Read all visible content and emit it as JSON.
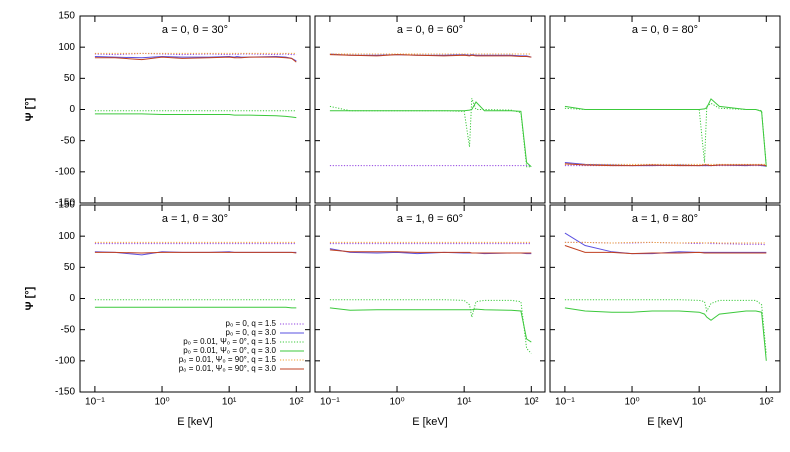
{
  "chart_data": [
    {
      "type": "line",
      "title": "a = 0, θ = 30°",
      "x": [
        0.1,
        0.2,
        0.5,
        1,
        2,
        5,
        10,
        12,
        13,
        15,
        20,
        50,
        70,
        85,
        100
      ],
      "xlim": [
        0.06,
        160
      ],
      "ylim": [
        -150,
        150
      ],
      "xscale": "log",
      "xticks": [
        0.1,
        1,
        10,
        100
      ],
      "yticks": [
        -150,
        -100,
        -50,
        0,
        50,
        100,
        150
      ],
      "series": [
        {
          "color": "#9040e0",
          "dash": true,
          "values": [
            89,
            88,
            90,
            89,
            88,
            89,
            88,
            89,
            88,
            89,
            89,
            88,
            89,
            88,
            88
          ]
        },
        {
          "color": "#5a50e0",
          "dash": false,
          "values": [
            85,
            84,
            83,
            85,
            84,
            84,
            85,
            84,
            85,
            84,
            84,
            85,
            84,
            82,
            78
          ]
        },
        {
          "color": "#3cc93c",
          "dash": true,
          "values": [
            -2,
            -2,
            -2,
            -2,
            -2,
            -2,
            -2,
            -2,
            -2,
            -2,
            -2,
            -2,
            -2,
            -2,
            -2
          ]
        },
        {
          "color": "#3cc93c",
          "dash": false,
          "values": [
            -7,
            -7,
            -7,
            -8,
            -8,
            -8,
            -8,
            -9,
            -9,
            -9,
            -9,
            -10,
            -11,
            -12,
            -13
          ]
        },
        {
          "color": "#f0a030",
          "dash": true,
          "values": [
            90,
            90,
            90,
            90,
            90,
            90,
            90,
            90,
            90,
            90,
            90,
            90,
            90,
            90,
            90
          ]
        },
        {
          "color": "#c04020",
          "dash": false,
          "values": [
            83,
            83,
            80,
            84,
            82,
            83,
            84,
            83,
            83,
            83,
            84,
            84,
            83,
            82,
            76
          ]
        }
      ],
      "ylabel": "Ψ [°]"
    },
    {
      "type": "line",
      "title": "a = 0, θ = 60°",
      "x": [
        0.1,
        0.2,
        0.5,
        1,
        2,
        5,
        10,
        12,
        13,
        15,
        20,
        50,
        70,
        85,
        100
      ],
      "xlim": [
        0.06,
        160
      ],
      "ylim": [
        -150,
        150
      ],
      "xscale": "log",
      "xticks": [
        0.1,
        1,
        10,
        100
      ],
      "yticks": [
        -150,
        -100,
        -50,
        0,
        50,
        100,
        150
      ],
      "series": [
        {
          "color": "#9040e0",
          "dash": true,
          "values": [
            -90,
            -90,
            -90,
            -90,
            -90,
            -90,
            -90,
            -90,
            -90,
            -90,
            -90,
            -90,
            -90,
            -90,
            -90
          ]
        },
        {
          "color": "#5a50e0",
          "dash": false,
          "values": [
            89,
            87,
            87,
            88,
            87,
            87,
            88,
            87,
            88,
            87,
            87,
            87,
            86,
            86,
            84
          ]
        },
        {
          "color": "#3cc93c",
          "dash": true,
          "values": [
            5,
            -2,
            -2,
            -2,
            -2,
            -2,
            -3,
            -60,
            18,
            0,
            0,
            -1,
            -5,
            -92,
            -92
          ]
        },
        {
          "color": "#3cc93c",
          "dash": false,
          "values": [
            -2,
            -2,
            -2,
            -2,
            -2,
            -2,
            -2,
            -1,
            0,
            12,
            -2,
            -2,
            -3,
            -85,
            -92
          ]
        },
        {
          "color": "#f0a030",
          "dash": true,
          "values": [
            89,
            89,
            89,
            89,
            89,
            89,
            89,
            89,
            89,
            89,
            89,
            89,
            89,
            89,
            89
          ]
        },
        {
          "color": "#c04020",
          "dash": false,
          "values": [
            88,
            87,
            86,
            88,
            87,
            86,
            87,
            86,
            87,
            86,
            86,
            86,
            85,
            85,
            84
          ]
        }
      ]
    },
    {
      "type": "line",
      "title": "a = 0, θ = 80°",
      "x": [
        0.1,
        0.2,
        0.5,
        1,
        2,
        5,
        10,
        12,
        13,
        15,
        20,
        50,
        70,
        85,
        100
      ],
      "xlim": [
        0.06,
        160
      ],
      "ylim": [
        -150,
        150
      ],
      "xscale": "log",
      "xticks": [
        0.1,
        1,
        10,
        100
      ],
      "yticks": [
        -150,
        -100,
        -50,
        0,
        50,
        100,
        150
      ],
      "series": [
        {
          "color": "#9040e0",
          "dash": true,
          "values": [
            -90,
            -90,
            -90,
            -90,
            -90,
            -90,
            -90,
            -90,
            -90,
            -90,
            -90,
            -90,
            -90,
            -90,
            -90
          ]
        },
        {
          "color": "#5a50e0",
          "dash": false,
          "values": [
            -85,
            -88,
            -89,
            -90,
            -90,
            -89,
            -90,
            -90,
            -90,
            -90,
            -89,
            -90,
            -89,
            -90,
            -91
          ]
        },
        {
          "color": "#3cc93c",
          "dash": true,
          "values": [
            2,
            0,
            0,
            0,
            0,
            0,
            0,
            -85,
            5,
            10,
            2,
            0,
            0,
            -2,
            -90
          ]
        },
        {
          "color": "#3cc93c",
          "dash": false,
          "values": [
            5,
            0,
            0,
            0,
            0,
            0,
            0,
            1,
            3,
            17,
            5,
            0,
            0,
            -3,
            -92
          ]
        },
        {
          "color": "#f0a030",
          "dash": true,
          "values": [
            -88,
            -88,
            -88,
            -88,
            -88,
            -88,
            -88,
            -88,
            -88,
            -88,
            -88,
            -88,
            -88,
            -88,
            -88
          ]
        },
        {
          "color": "#c04020",
          "dash": false,
          "values": [
            -87,
            -89,
            -90,
            -90,
            -89,
            -90,
            -90,
            -89,
            -89,
            -90,
            -89,
            -89,
            -89,
            -89,
            -90
          ]
        }
      ]
    },
    {
      "type": "line",
      "title": "a = 1, θ = 30°",
      "x": [
        0.1,
        0.2,
        0.5,
        1,
        2,
        5,
        10,
        12,
        13,
        15,
        20,
        50,
        70,
        85,
        100
      ],
      "xlim": [
        0.06,
        160
      ],
      "ylim": [
        -150,
        150
      ],
      "xscale": "log",
      "xticks": [
        {
          "value": 0.1,
          "label": "10⁻¹"
        },
        {
          "value": 1,
          "label": "10⁰"
        },
        {
          "value": 10,
          "label": "10¹"
        },
        {
          "value": 100,
          "label": "10²"
        }
      ],
      "yticks": [
        -150,
        -100,
        -50,
        0,
        50,
        100,
        150
      ],
      "series": [
        {
          "name": "p₀ = 0, q = 1.5",
          "color": "#9040e0",
          "dash": true,
          "values": [
            88,
            88,
            88,
            88,
            88,
            88,
            88,
            88,
            88,
            88,
            88,
            88,
            88,
            88,
            88
          ]
        },
        {
          "name": "p₀ = 0, q = 3.0",
          "color": "#5a50e0",
          "dash": false,
          "values": [
            75,
            74,
            70,
            75,
            74,
            74,
            75,
            74,
            74,
            74,
            74,
            74,
            74,
            74,
            74
          ]
        },
        {
          "name": "p₀ = 0.01, Ψ₀ = 0°, q = 1.5",
          "color": "#3cc93c",
          "dash": true,
          "values": [
            -2,
            -2,
            -2,
            -2,
            -2,
            -2,
            -2,
            -2,
            -2,
            -2,
            -2,
            -2,
            -2,
            -2,
            -2
          ]
        },
        {
          "name": "p₀ = 0.01, Ψ₀ = 0°, q = 3.0",
          "color": "#3cc93c",
          "dash": false,
          "values": [
            -14,
            -14,
            -14,
            -14,
            -14,
            -14,
            -14,
            -14,
            -14,
            -14,
            -14,
            -14,
            -14,
            -15,
            -15
          ]
        },
        {
          "name": "p₀ = 0.01, Ψ₀ = 90°, q = 1.5",
          "color": "#f0a030",
          "dash": true,
          "values": [
            90,
            90,
            90,
            90,
            90,
            90,
            90,
            90,
            90,
            90,
            90,
            90,
            90,
            90,
            90
          ]
        },
        {
          "name": "p₀ = 0.01, Ψ₀ = 90°, q = 3.0",
          "color": "#c04020",
          "dash": false,
          "values": [
            74,
            74,
            73,
            74,
            74,
            74,
            74,
            74,
            74,
            74,
            74,
            74,
            74,
            74,
            73
          ]
        }
      ],
      "ylabel": "Ψ [°]",
      "xlabel": "E [keV]",
      "legend": "lower right"
    },
    {
      "type": "line",
      "title": "a = 1, θ = 60°",
      "x": [
        0.1,
        0.2,
        0.5,
        1,
        2,
        5,
        10,
        12,
        13,
        15,
        20,
        50,
        70,
        85,
        100
      ],
      "xlim": [
        0.06,
        160
      ],
      "ylim": [
        -150,
        150
      ],
      "xscale": "log",
      "xticks": [
        {
          "value": 0.1,
          "label": "10⁻¹"
        },
        {
          "value": 1,
          "label": "10⁰"
        },
        {
          "value": 10,
          "label": "10¹"
        },
        {
          "value": 100,
          "label": "10²"
        }
      ],
      "yticks": [
        -150,
        -100,
        -50,
        0,
        50,
        100,
        150
      ],
      "series": [
        {
          "color": "#9040e0",
          "dash": true,
          "values": [
            88,
            88,
            88,
            88,
            88,
            88,
            88,
            88,
            88,
            88,
            88,
            88,
            88,
            88,
            88
          ]
        },
        {
          "color": "#5a50e0",
          "dash": false,
          "values": [
            80,
            74,
            73,
            74,
            72,
            74,
            73,
            73,
            73,
            73,
            72,
            73,
            73,
            72,
            72
          ]
        },
        {
          "color": "#3cc93c",
          "dash": true,
          "values": [
            -2,
            -2,
            -2,
            -2,
            -2,
            -2,
            -3,
            -10,
            -30,
            -5,
            -3,
            -3,
            -5,
            -80,
            -88
          ]
        },
        {
          "color": "#3cc93c",
          "dash": false,
          "values": [
            -15,
            -19,
            -18,
            -18,
            -18,
            -18,
            -18,
            -18,
            -18,
            -17,
            -18,
            -19,
            -20,
            -65,
            -70
          ]
        },
        {
          "color": "#f0a030",
          "dash": true,
          "values": [
            90,
            90,
            90,
            90,
            90,
            90,
            90,
            90,
            90,
            90,
            90,
            90,
            90,
            90,
            90
          ]
        },
        {
          "color": "#c04020",
          "dash": false,
          "values": [
            78,
            75,
            75,
            75,
            74,
            74,
            74,
            74,
            73,
            73,
            73,
            73,
            73,
            73,
            73
          ]
        }
      ],
      "xlabel": "E [keV]"
    },
    {
      "type": "line",
      "title": "a = 1, θ = 80°",
      "x": [
        0.1,
        0.2,
        0.5,
        1,
        2,
        5,
        10,
        12,
        13,
        15,
        20,
        50,
        70,
        85,
        100
      ],
      "xlim": [
        0.06,
        160
      ],
      "ylim": [
        -150,
        150
      ],
      "xscale": "log",
      "xticks": [
        {
          "value": 0.1,
          "label": "10⁻¹"
        },
        {
          "value": 1,
          "label": "10⁰"
        },
        {
          "value": 10,
          "label": "10¹"
        },
        {
          "value": 100,
          "label": "10²"
        }
      ],
      "yticks": [
        -150,
        -100,
        -50,
        0,
        50,
        100,
        150
      ],
      "series": [
        {
          "color": "#9040e0",
          "dash": true,
          "values": [
            90,
            90,
            89,
            89,
            90,
            89,
            88,
            89,
            89,
            88,
            88,
            87,
            87,
            87,
            86
          ]
        },
        {
          "color": "#5a50e0",
          "dash": false,
          "values": [
            105,
            85,
            75,
            72,
            72,
            75,
            74,
            74,
            74,
            74,
            74,
            74,
            74,
            74,
            74
          ]
        },
        {
          "color": "#3cc93c",
          "dash": true,
          "values": [
            -2,
            -2,
            -2,
            -2,
            -2,
            -2,
            -3,
            -5,
            -20,
            -8,
            -3,
            -3,
            -3,
            -10,
            -90
          ]
        },
        {
          "color": "#3cc93c",
          "dash": false,
          "values": [
            -15,
            -20,
            -22,
            -22,
            -20,
            -20,
            -22,
            -25,
            -30,
            -35,
            -25,
            -20,
            -20,
            -22,
            -100
          ]
        },
        {
          "color": "#f0a030",
          "dash": true,
          "values": [
            90,
            90,
            89,
            90,
            90,
            89,
            90,
            89,
            89,
            90,
            89,
            89,
            89,
            89,
            89
          ]
        },
        {
          "color": "#c04020",
          "dash": false,
          "values": [
            85,
            74,
            74,
            72,
            73,
            73,
            74,
            73,
            73,
            73,
            73,
            73,
            73,
            73,
            73
          ]
        }
      ],
      "xlabel": "E [keV]"
    }
  ]
}
